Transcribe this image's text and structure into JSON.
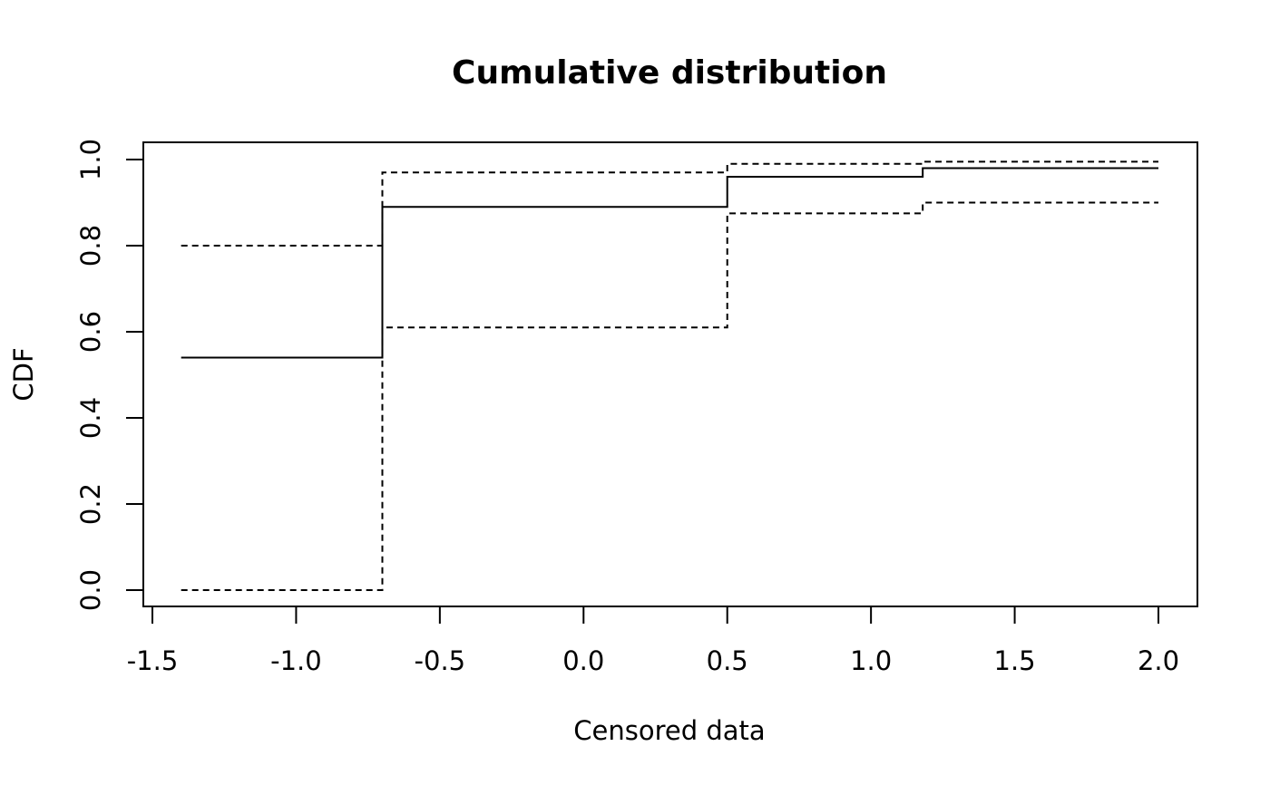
{
  "chart_data": {
    "type": "line",
    "title": "Cumulative distribution",
    "xlabel": "Censored data",
    "ylabel": "CDF",
    "xlim": [
      -1.5,
      2.0
    ],
    "ylim": [
      0.0,
      1.0
    ],
    "xticks": [
      -1.5,
      -1.0,
      -0.5,
      0.0,
      0.5,
      1.0,
      1.5,
      2.0
    ],
    "xtick_labels": [
      "-1.5",
      "-1.0",
      "-0.5",
      "0.0",
      "0.5",
      "1.0",
      "1.5",
      "2.0"
    ],
    "yticks": [
      0.0,
      0.2,
      0.4,
      0.6,
      0.8,
      1.0
    ],
    "ytick_labels": [
      "0.0",
      "0.2",
      "0.4",
      "0.6",
      "0.8",
      "1.0"
    ],
    "grid": false,
    "series": [
      {
        "style": "solid",
        "x": [
          -1.4,
          -0.7,
          0.5,
          1.18,
          2.0
        ],
        "y": [
          0.54,
          0.89,
          0.96,
          0.98,
          0.98
        ]
      },
      {
        "style": "dashed",
        "x": [
          -1.4,
          -0.7,
          0.5,
          1.18,
          2.0
        ],
        "y": [
          0.8,
          0.97,
          0.99,
          0.995,
          0.995
        ]
      },
      {
        "style": "dashed",
        "x": [
          -1.4,
          -0.7,
          0.5,
          1.18,
          2.0
        ],
        "y": [
          0.0,
          0.61,
          0.875,
          0.9,
          0.9
        ]
      }
    ]
  }
}
